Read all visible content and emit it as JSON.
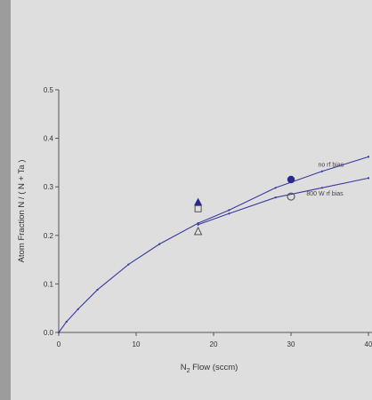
{
  "chart_data": {
    "type": "scatter",
    "title": "",
    "xlabel": "N",
    "xlabel_sub": "2",
    "xlabel_rest": " Flow (sccm)",
    "ylabel": "Atom Fraction N / ( N + Ta )",
    "xlim": [
      0,
      40
    ],
    "ylim": [
      0.0,
      0.5
    ],
    "xticks": [
      "0",
      "10",
      "20",
      "30",
      "40"
    ],
    "yticks": [
      "0.0",
      "0.1",
      "0.2",
      "0.3",
      "0.4",
      "0.5"
    ],
    "grid": false,
    "colors": {
      "line": "#3a3aa0",
      "marker": "#2a2a8c",
      "open": "#444444"
    },
    "curves": [
      {
        "name": "no rf bias",
        "x": [
          0,
          1,
          2.5,
          5,
          9,
          13,
          18,
          22,
          28,
          34,
          40
        ],
        "y": [
          0.0,
          0.022,
          0.048,
          0.088,
          0.14,
          0.182,
          0.225,
          0.252,
          0.298,
          0.332,
          0.362
        ]
      },
      {
        "name": "800 W rf bias",
        "x": [
          18,
          22,
          28,
          34,
          40
        ],
        "y": [
          0.222,
          0.245,
          0.278,
          0.298,
          0.318
        ]
      }
    ],
    "points": [
      {
        "marker": "filled-triangle",
        "x": 18,
        "y": 0.268
      },
      {
        "marker": "open-square",
        "x": 18,
        "y": 0.255
      },
      {
        "marker": "open-triangle",
        "x": 18,
        "y": 0.208
      },
      {
        "marker": "filled-circle",
        "x": 30,
        "y": 0.315
      },
      {
        "marker": "open-circle",
        "x": 30,
        "y": 0.28
      }
    ],
    "annotations": [
      {
        "text": "no rf bias",
        "x": 33.5,
        "y": 0.342
      },
      {
        "text": "800 W rf bias",
        "x": 32,
        "y": 0.282
      }
    ]
  }
}
